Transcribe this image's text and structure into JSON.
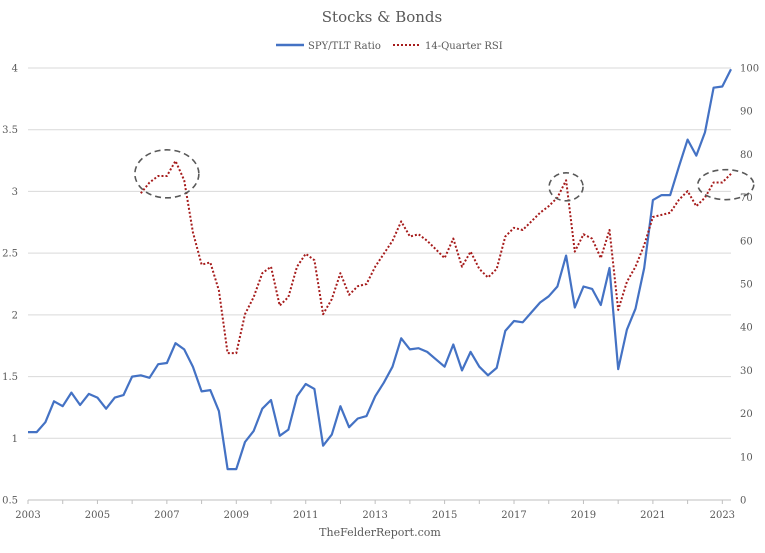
{
  "chart_data": {
    "type": "line",
    "title": "Stocks & Bonds",
    "footer": "TheFelderReport.com",
    "grid": true,
    "legend_position": "top-center",
    "xlim": [
      2003,
      2023.25
    ],
    "x_ticks": [
      2003,
      2005,
      2007,
      2009,
      2011,
      2013,
      2015,
      2017,
      2019,
      2021,
      2023
    ],
    "y_left": {
      "lim": [
        0.5,
        4
      ],
      "ticks": [
        0.5,
        1,
        1.5,
        2,
        2.5,
        3,
        3.5,
        4
      ]
    },
    "y_right": {
      "lim": [
        0,
        100
      ],
      "ticks": [
        0,
        10,
        20,
        30,
        40,
        50,
        60,
        70,
        80,
        90,
        100
      ]
    },
    "series": [
      {
        "name": "SPY/TLT Ratio",
        "axis": "left",
        "color": "#4472c4",
        "style": "solid",
        "x": [
          2003.0,
          2003.25,
          2003.5,
          2003.75,
          2004.0,
          2004.25,
          2004.5,
          2004.75,
          2005.0,
          2005.25,
          2005.5,
          2005.75,
          2006.0,
          2006.25,
          2006.5,
          2006.75,
          2007.0,
          2007.25,
          2007.5,
          2007.75,
          2008.0,
          2008.25,
          2008.5,
          2008.75,
          2009.0,
          2009.25,
          2009.5,
          2009.75,
          2010.0,
          2010.25,
          2010.5,
          2010.75,
          2011.0,
          2011.25,
          2011.5,
          2011.75,
          2012.0,
          2012.25,
          2012.5,
          2012.75,
          2013.0,
          2013.25,
          2013.5,
          2013.75,
          2014.0,
          2014.25,
          2014.5,
          2014.75,
          2015.0,
          2015.25,
          2015.5,
          2015.75,
          2016.0,
          2016.25,
          2016.5,
          2016.75,
          2017.0,
          2017.25,
          2017.5,
          2017.75,
          2018.0,
          2018.25,
          2018.5,
          2018.75,
          2019.0,
          2019.25,
          2019.5,
          2019.75,
          2020.0,
          2020.25,
          2020.5,
          2020.75,
          2021.0,
          2021.25,
          2021.5,
          2021.75,
          2022.0,
          2022.25,
          2022.5,
          2022.75,
          2023.0,
          2023.25
        ],
        "y": [
          1.05,
          1.05,
          1.13,
          1.3,
          1.26,
          1.37,
          1.27,
          1.36,
          1.33,
          1.24,
          1.33,
          1.35,
          1.5,
          1.51,
          1.49,
          1.6,
          1.61,
          1.77,
          1.72,
          1.58,
          1.38,
          1.39,
          1.22,
          0.75,
          0.75,
          0.97,
          1.06,
          1.24,
          1.31,
          1.02,
          1.07,
          1.34,
          1.44,
          1.4,
          0.94,
          1.03,
          1.26,
          1.09,
          1.16,
          1.18,
          1.34,
          1.45,
          1.58,
          1.81,
          1.72,
          1.73,
          1.7,
          1.64,
          1.58,
          1.76,
          1.55,
          1.7,
          1.58,
          1.51,
          1.57,
          1.87,
          1.95,
          1.94,
          2.02,
          2.1,
          2.15,
          2.23,
          2.48,
          2.06,
          2.23,
          2.21,
          2.08,
          2.38,
          1.56,
          1.88,
          2.05,
          2.38,
          2.93,
          2.97,
          2.97,
          3.2,
          3.42,
          3.29,
          3.48,
          3.84,
          3.85,
          3.99
        ]
      },
      {
        "name": "14-Quarter RSI",
        "axis": "right",
        "color": "#a61c1c",
        "style": "dotted",
        "x": [
          2006.25,
          2006.5,
          2006.75,
          2007.0,
          2007.25,
          2007.5,
          2007.75,
          2008.0,
          2008.25,
          2008.5,
          2008.75,
          2009.0,
          2009.25,
          2009.5,
          2009.75,
          2010.0,
          2010.25,
          2010.5,
          2010.75,
          2011.0,
          2011.25,
          2011.5,
          2011.75,
          2012.0,
          2012.25,
          2012.5,
          2012.75,
          2013.0,
          2013.25,
          2013.5,
          2013.75,
          2014.0,
          2014.25,
          2014.5,
          2014.75,
          2015.0,
          2015.25,
          2015.5,
          2015.75,
          2016.0,
          2016.25,
          2016.5,
          2016.75,
          2017.0,
          2017.25,
          2017.5,
          2017.75,
          2018.0,
          2018.25,
          2018.5,
          2018.75,
          2019.0,
          2019.25,
          2019.5,
          2019.75,
          2020.0,
          2020.25,
          2020.5,
          2020.75,
          2021.0,
          2021.25,
          2021.5,
          2021.75,
          2022.0,
          2022.25,
          2022.5,
          2022.75,
          2023.0,
          2023.25
        ],
        "y": [
          71.0,
          73.5,
          75.0,
          75.0,
          78.5,
          74.0,
          62.0,
          54.5,
          55.0,
          48.5,
          34.0,
          34.0,
          43.0,
          47.0,
          52.5,
          54.0,
          45.0,
          47.0,
          54.0,
          57.0,
          55.5,
          43.0,
          46.5,
          52.5,
          47.5,
          49.5,
          50.0,
          54.0,
          57.0,
          60.0,
          64.5,
          61.0,
          61.5,
          60.0,
          58.0,
          56.0,
          60.5,
          54.0,
          57.5,
          53.5,
          51.5,
          53.5,
          61.0,
          63.0,
          62.5,
          64.5,
          66.5,
          68.0,
          70.0,
          74.0,
          57.5,
          61.5,
          60.5,
          56.0,
          62.5,
          44.0,
          50.5,
          54.0,
          59.0,
          65.5,
          66.0,
          66.5,
          69.5,
          71.5,
          68.0,
          70.0,
          73.5,
          73.5,
          75.5
        ]
      }
    ],
    "annotations": [
      {
        "shape": "dashed-ellipse",
        "cx": 2007.0,
        "cy_right": 75.5
      },
      {
        "shape": "dashed-ellipse",
        "cx": 2018.5,
        "cy_right": 72.5
      },
      {
        "shape": "dashed-ellipse",
        "cx": 2023.1,
        "cy_right": 73.0
      }
    ]
  }
}
